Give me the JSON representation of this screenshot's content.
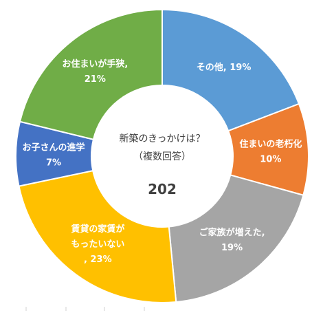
{
  "chart_data": {
    "type": "pie",
    "variant": "donut",
    "title_lines": [
      "新築のきっかけは？",
      "（複数回答）"
    ],
    "total": "202",
    "start_angle_deg": 0,
    "direction": "clockwise",
    "slices": [
      {
        "label_lines": [
          "その他, 19%"
        ],
        "value": 19,
        "color": "#5B9BD5"
      },
      {
        "label_lines": [
          "住まいの老朽化",
          "10%"
        ],
        "value": 10,
        "color": "#ED7D31"
      },
      {
        "label_lines": [
          "ご家族が増えた,",
          "19%"
        ],
        "value": 19,
        "color": "#A5A5A5"
      },
      {
        "label_lines": [
          "賃貸の家賃が",
          "もったいない",
          ", 23%"
        ],
        "value": 23,
        "color": "#FFC000"
      },
      {
        "label_lines": [
          "お子さんの進学",
          "7%"
        ],
        "value": 7,
        "color": "#4472C4"
      },
      {
        "label_lines": [
          "お住まいが手狭,",
          "21%"
        ],
        "value": 21,
        "color": "#70AD47"
      }
    ]
  }
}
